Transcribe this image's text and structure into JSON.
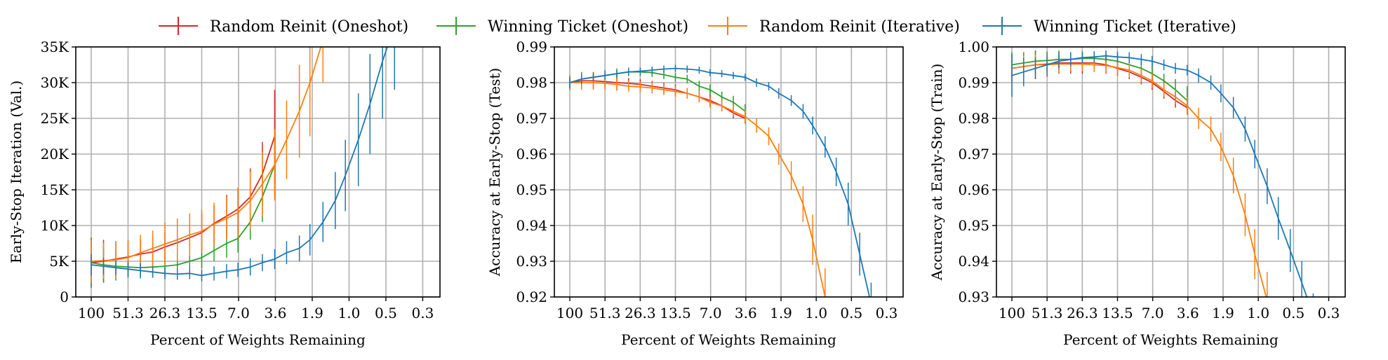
{
  "legend": [
    {
      "name": "Random Reinit (Oneshot)",
      "color": "#d62728"
    },
    {
      "name": "Winning Ticket (Oneshot)",
      "color": "#2ca02c"
    },
    {
      "name": "Random Reinit (Iterative)",
      "color": "#ff7f0e"
    },
    {
      "name": "Winning Ticket (Iterative)",
      "color": "#1f77b4"
    }
  ],
  "chart_data": [
    {
      "type": "line",
      "xlabel": "Percent of Weights Remaining",
      "ylabel": "Early-Stop Iteration (Val.)",
      "x_tick_labels": [
        "100",
        "51.3",
        "26.3",
        "13.5",
        "7.0",
        "3.6",
        "1.9",
        "1.0",
        "0.5",
        "0.3"
      ],
      "x_scale": "log",
      "x_reversed": true,
      "xlim": [
        100,
        0.18
      ],
      "ylim": [
        0,
        35000
      ],
      "y_ticks": [
        0,
        5000,
        10000,
        15000,
        20000,
        25000,
        30000,
        35000
      ],
      "y_tick_labels": [
        "0",
        "5K",
        "10K",
        "15K",
        "20K",
        "25K",
        "30K",
        "35K"
      ],
      "grid": true,
      "series": [
        {
          "name": "Random Reinit (Oneshot)",
          "color": "#d62728",
          "x": [
            100,
            80,
            64,
            51.3,
            41,
            32.8,
            26.3,
            21,
            16.8,
            13.5,
            10.8,
            8.6,
            7.0,
            5.6,
            4.5,
            3.6
          ],
          "y": [
            4800,
            5000,
            5300,
            5600,
            6000,
            6300,
            7000,
            7600,
            8300,
            9000,
            10300,
            11300,
            12300,
            14000,
            17200,
            22500
          ],
          "err": [
            3500,
            3000,
            2500,
            2200,
            2000,
            2000,
            2000,
            2000,
            2000,
            2500,
            2500,
            3000,
            3000,
            4000,
            4500,
            6500
          ]
        },
        {
          "name": "Winning Ticket (Oneshot)",
          "color": "#2ca02c",
          "x": [
            100,
            80,
            64,
            51.3,
            41,
            32.8,
            26.3,
            21,
            16.8,
            13.5,
            10.8,
            8.6,
            7.0,
            5.6,
            4.5,
            3.6
          ],
          "y": [
            4800,
            4500,
            4300,
            4200,
            4100,
            4200,
            4300,
            4500,
            5000,
            5500,
            6500,
            7500,
            8200,
            10500,
            14000,
            18500
          ],
          "err": [
            3500,
            2500,
            2000,
            1500,
            1500,
            1500,
            1500,
            1500,
            1500,
            1500,
            1500,
            2000,
            2000,
            2500,
            3500,
            4500
          ]
        },
        {
          "name": "Random Reinit (Iterative)",
          "color": "#ff7f0e",
          "x": [
            100,
            80,
            64,
            51.3,
            41,
            32.8,
            26.3,
            21,
            16.8,
            13.5,
            10.8,
            8.6,
            7.0,
            5.6,
            4.5,
            3.6,
            2.9,
            2.3,
            1.9,
            1.5
          ],
          "y": [
            5000,
            5100,
            5200,
            5500,
            6200,
            6800,
            7400,
            8000,
            8700,
            9200,
            10200,
            11000,
            11800,
            13500,
            15800,
            18500,
            22000,
            26000,
            30000,
            36000
          ],
          "err": [
            3000,
            2500,
            2500,
            2500,
            2500,
            2500,
            3000,
            3000,
            3000,
            3000,
            3000,
            3000,
            3500,
            4000,
            4500,
            5000,
            5500,
            6500,
            7500,
            6000
          ]
        },
        {
          "name": "Winning Ticket (Iterative)",
          "color": "#1f77b4",
          "x": [
            100,
            80,
            64,
            51.3,
            41,
            32.8,
            26.3,
            21,
            16.8,
            13.5,
            10.8,
            8.6,
            7.0,
            5.6,
            4.5,
            3.6,
            2.9,
            2.3,
            1.9,
            1.5,
            1.2,
            1.0,
            0.79,
            0.64,
            0.51,
            0.41
          ],
          "y": [
            4500,
            4300,
            4100,
            3900,
            3700,
            3500,
            3300,
            3200,
            3300,
            3000,
            3300,
            3600,
            3800,
            4200,
            4800,
            5300,
            6200,
            6800,
            8000,
            10500,
            13500,
            17000,
            22000,
            27000,
            33000,
            38000
          ],
          "err": [
            1500,
            1200,
            1000,
            1000,
            1000,
            800,
            800,
            800,
            800,
            800,
            1000,
            1000,
            1000,
            1200,
            1200,
            1400,
            1600,
            1800,
            2200,
            2800,
            4000,
            5000,
            6500,
            7000,
            8000,
            9000
          ]
        }
      ]
    },
    {
      "type": "line",
      "xlabel": "Percent of Weights Remaining",
      "ylabel": "Accuracy at Early-Stop (Test)",
      "x_tick_labels": [
        "100",
        "51.3",
        "26.3",
        "13.5",
        "7.0",
        "3.6",
        "1.9",
        "1.0",
        "0.5",
        "0.3"
      ],
      "x_scale": "log",
      "x_reversed": true,
      "xlim": [
        100,
        0.18
      ],
      "ylim": [
        0.92,
        0.99
      ],
      "y_ticks": [
        0.92,
        0.93,
        0.94,
        0.95,
        0.96,
        0.97,
        0.98,
        0.99
      ],
      "y_tick_labels": [
        "0.92",
        "0.93",
        "0.94",
        "0.95",
        "0.96",
        "0.97",
        "0.98",
        "0.99"
      ],
      "grid": true,
      "series": [
        {
          "name": "Random Reinit (Oneshot)",
          "color": "#d62728",
          "x": [
            100,
            80,
            64,
            51.3,
            41,
            32.8,
            26.3,
            21,
            16.8,
            13.5,
            10.8,
            8.6,
            7.0,
            5.6,
            4.5,
            3.6
          ],
          "y": [
            0.98,
            0.9805,
            0.9805,
            0.9803,
            0.98,
            0.9798,
            0.9795,
            0.979,
            0.9785,
            0.978,
            0.977,
            0.976,
            0.975,
            0.9735,
            0.9715,
            0.97
          ],
          "err": [
            0.002,
            0.002,
            0.002,
            0.002,
            0.002,
            0.0015,
            0.0015,
            0.0015,
            0.0015,
            0.0015,
            0.0015,
            0.0015,
            0.0015,
            0.0015,
            0.0015,
            0.0015
          ]
        },
        {
          "name": "Winning Ticket (Oneshot)",
          "color": "#2ca02c",
          "x": [
            100,
            80,
            64,
            51.3,
            41,
            32.8,
            26.3,
            21,
            16.8,
            13.5,
            10.8,
            8.6,
            7.0,
            5.6,
            4.5,
            3.6
          ],
          "y": [
            0.98,
            0.981,
            0.9815,
            0.982,
            0.9825,
            0.983,
            0.983,
            0.9828,
            0.9822,
            0.9815,
            0.981,
            0.979,
            0.978,
            0.976,
            0.9745,
            0.972
          ],
          "err": [
            0.002,
            0.002,
            0.0015,
            0.0015,
            0.0015,
            0.0012,
            0.0012,
            0.0012,
            0.0012,
            0.0012,
            0.0012,
            0.0015,
            0.0015,
            0.0015,
            0.0018,
            0.002
          ]
        },
        {
          "name": "Random Reinit (Iterative)",
          "color": "#ff7f0e",
          "x": [
            100,
            80,
            64,
            51.3,
            41,
            32.8,
            26.3,
            21,
            16.8,
            13.5,
            10.8,
            8.6,
            7.0,
            5.6,
            4.5,
            3.6,
            2.9,
            2.3,
            1.9,
            1.5,
            1.2,
            1.0,
            0.79
          ],
          "y": [
            0.98,
            0.98,
            0.98,
            0.9798,
            0.9795,
            0.979,
            0.9788,
            0.9785,
            0.978,
            0.9775,
            0.977,
            0.976,
            0.9745,
            0.9735,
            0.972,
            0.9705,
            0.968,
            0.965,
            0.96,
            0.954,
            0.946,
            0.936,
            0.92
          ],
          "err": [
            0.002,
            0.002,
            0.002,
            0.0018,
            0.0018,
            0.0015,
            0.0015,
            0.0015,
            0.0015,
            0.0015,
            0.0015,
            0.0015,
            0.0015,
            0.0015,
            0.0015,
            0.002,
            0.002,
            0.0025,
            0.003,
            0.004,
            0.005,
            0.007,
            0.008
          ]
        },
        {
          "name": "Winning Ticket (Iterative)",
          "color": "#1f77b4",
          "x": [
            100,
            80,
            64,
            51.3,
            41,
            32.8,
            26.3,
            21,
            16.8,
            13.5,
            10.8,
            8.6,
            7.0,
            5.6,
            4.5,
            3.6,
            2.9,
            2.3,
            1.9,
            1.5,
            1.2,
            1.0,
            0.79,
            0.64,
            0.51,
            0.41,
            0.33
          ],
          "y": [
            0.98,
            0.981,
            0.9815,
            0.982,
            0.9825,
            0.983,
            0.9832,
            0.9835,
            0.9838,
            0.984,
            0.9838,
            0.9835,
            0.9828,
            0.9825,
            0.982,
            0.9815,
            0.98,
            0.979,
            0.977,
            0.975,
            0.972,
            0.968,
            0.962,
            0.955,
            0.946,
            0.932,
            0.918
          ],
          "err": [
            0.0015,
            0.0015,
            0.0012,
            0.0012,
            0.001,
            0.001,
            0.001,
            0.001,
            0.001,
            0.001,
            0.001,
            0.001,
            0.001,
            0.001,
            0.001,
            0.001,
            0.0012,
            0.0012,
            0.0015,
            0.0015,
            0.002,
            0.0025,
            0.003,
            0.004,
            0.006,
            0.006,
            0.006
          ]
        }
      ]
    },
    {
      "type": "line",
      "xlabel": "Percent of Weights Remaining",
      "ylabel": "Accuracy at Early-Stop (Train)",
      "x_tick_labels": [
        "100",
        "51.3",
        "26.3",
        "13.5",
        "7.0",
        "3.6",
        "1.9",
        "1.0",
        "0.5",
        "0.3"
      ],
      "x_scale": "log",
      "x_reversed": true,
      "xlim": [
        100,
        0.18
      ],
      "ylim": [
        0.93,
        1.0
      ],
      "y_ticks": [
        0.93,
        0.94,
        0.95,
        0.96,
        0.97,
        0.98,
        0.99,
        1.0
      ],
      "y_tick_labels": [
        "0.93",
        "0.94",
        "0.95",
        "0.96",
        "0.97",
        "0.98",
        "0.99",
        "1.00"
      ],
      "grid": true,
      "series": [
        {
          "name": "Random Reinit (Oneshot)",
          "color": "#d62728",
          "x": [
            100,
            80,
            64,
            51.3,
            41,
            32.8,
            26.3,
            21,
            16.8,
            13.5,
            10.8,
            8.6,
            7.0,
            5.6,
            4.5,
            3.6
          ],
          "y": [
            0.994,
            0.9945,
            0.995,
            0.9952,
            0.9955,
            0.9955,
            0.9955,
            0.9955,
            0.995,
            0.994,
            0.993,
            0.9915,
            0.99,
            0.9875,
            0.985,
            0.983
          ],
          "err": [
            0.004,
            0.004,
            0.004,
            0.0035,
            0.003,
            0.003,
            0.003,
            0.0025,
            0.0025,
            0.002,
            0.002,
            0.002,
            0.002,
            0.002,
            0.002,
            0.002
          ]
        },
        {
          "name": "Winning Ticket (Oneshot)",
          "color": "#2ca02c",
          "x": [
            100,
            80,
            64,
            51.3,
            41,
            32.8,
            26.3,
            21,
            16.8,
            13.5,
            10.8,
            8.6,
            7.0,
            5.6,
            4.5,
            3.6
          ],
          "y": [
            0.995,
            0.9955,
            0.996,
            0.9962,
            0.9965,
            0.9965,
            0.9968,
            0.9968,
            0.9965,
            0.996,
            0.995,
            0.994,
            0.9925,
            0.9905,
            0.988,
            0.985
          ],
          "err": [
            0.0035,
            0.003,
            0.003,
            0.0025,
            0.0025,
            0.002,
            0.002,
            0.002,
            0.002,
            0.002,
            0.002,
            0.002,
            0.002,
            0.002,
            0.003,
            0.004
          ]
        },
        {
          "name": "Random Reinit (Iterative)",
          "color": "#ff7f0e",
          "x": [
            100,
            80,
            64,
            51.3,
            41,
            32.8,
            26.3,
            21,
            16.8,
            13.5,
            10.8,
            8.6,
            7.0,
            5.6,
            4.5,
            3.6,
            2.9,
            2.3,
            1.9,
            1.5,
            1.2,
            1.0,
            0.79
          ],
          "y": [
            0.994,
            0.9945,
            0.995,
            0.995,
            0.9952,
            0.9952,
            0.9952,
            0.995,
            0.9948,
            0.9942,
            0.9935,
            0.992,
            0.9905,
            0.988,
            0.986,
            0.9835,
            0.98,
            0.977,
            0.972,
            0.964,
            0.953,
            0.942,
            0.929
          ],
          "err": [
            0.003,
            0.003,
            0.003,
            0.0025,
            0.0025,
            0.002,
            0.002,
            0.002,
            0.002,
            0.002,
            0.002,
            0.002,
            0.002,
            0.002,
            0.002,
            0.0025,
            0.003,
            0.0035,
            0.004,
            0.005,
            0.006,
            0.007,
            0.008
          ]
        },
        {
          "name": "Winning Ticket (Iterative)",
          "color": "#1f77b4",
          "x": [
            100,
            80,
            64,
            51.3,
            41,
            32.8,
            26.3,
            21,
            16.8,
            13.5,
            10.8,
            8.6,
            7.0,
            5.6,
            4.5,
            3.6,
            2.9,
            2.3,
            1.9,
            1.5,
            1.2,
            1.0,
            0.79,
            0.64,
            0.51,
            0.41,
            0.33
          ],
          "y": [
            0.992,
            0.993,
            0.994,
            0.995,
            0.996,
            0.9965,
            0.997,
            0.9972,
            0.9975,
            0.9972,
            0.997,
            0.9965,
            0.996,
            0.995,
            0.994,
            0.9935,
            0.992,
            0.99,
            0.987,
            0.983,
            0.977,
            0.97,
            0.961,
            0.952,
            0.943,
            0.934,
            0.925
          ],
          "err": [
            0.006,
            0.004,
            0.003,
            0.0025,
            0.002,
            0.002,
            0.0015,
            0.0015,
            0.0015,
            0.0015,
            0.0015,
            0.0015,
            0.0015,
            0.0015,
            0.0015,
            0.0015,
            0.002,
            0.002,
            0.0025,
            0.003,
            0.0035,
            0.004,
            0.005,
            0.006,
            0.006,
            0.006,
            0.006
          ]
        }
      ]
    }
  ]
}
